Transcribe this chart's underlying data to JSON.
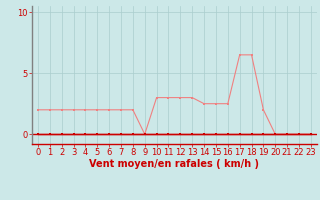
{
  "hours": [
    0,
    1,
    2,
    3,
    4,
    5,
    6,
    7,
    8,
    9,
    10,
    11,
    12,
    13,
    14,
    15,
    16,
    17,
    18,
    19,
    20,
    21,
    22,
    23
  ],
  "rafales": [
    2,
    2,
    2,
    2,
    2,
    2,
    2,
    2,
    2,
    0,
    3,
    3,
    3,
    3,
    2.5,
    2.5,
    2.5,
    6.5,
    6.5,
    2,
    0,
    0,
    0,
    0
  ],
  "moyen": [
    0,
    0,
    0,
    0,
    0,
    0,
    0,
    0,
    0,
    0,
    0,
    0,
    0,
    0,
    0,
    0,
    0,
    0,
    0,
    0,
    0,
    0,
    0,
    0
  ],
  "color_rafales": "#f08080",
  "color_moyen": "#cc0000",
  "bg_color": "#cce8e8",
  "grid_color": "#aacece",
  "xlabel": "Vent moyen/en rafales ( km/h )",
  "ylabel_ticks": [
    0,
    5,
    10
  ],
  "ylim": [
    -0.8,
    10.5
  ],
  "xlim": [
    -0.5,
    23.5
  ],
  "tick_fontsize": 6,
  "xlabel_fontsize": 7
}
